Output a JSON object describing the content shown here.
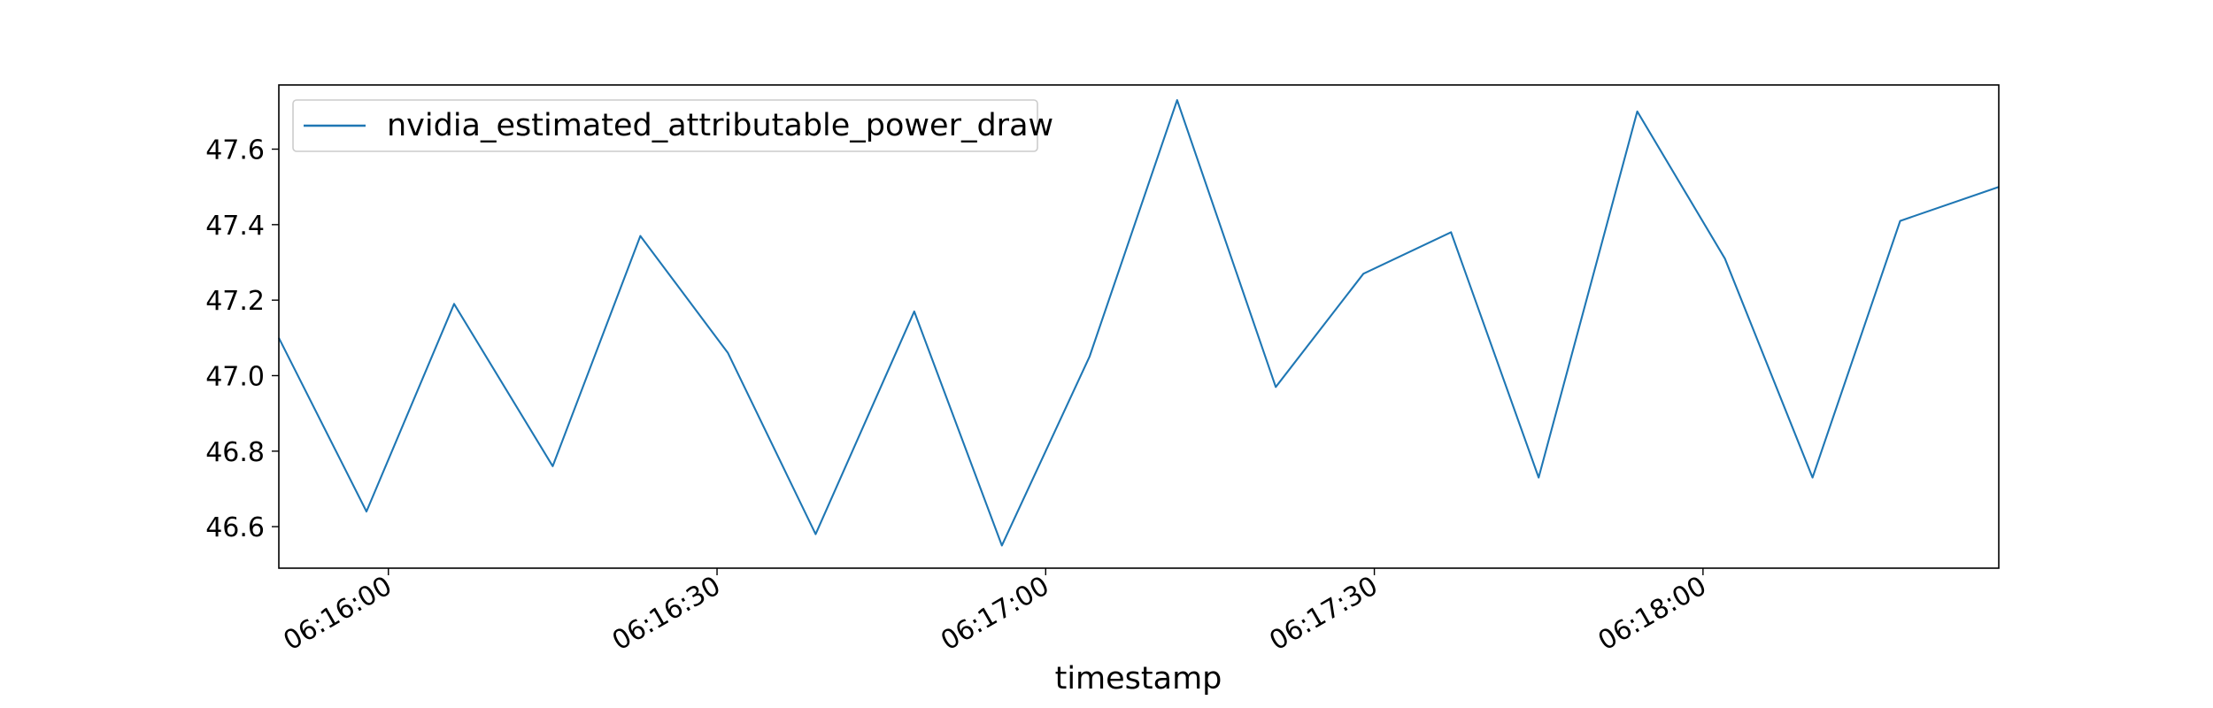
{
  "chart_data": {
    "type": "line",
    "title": "",
    "xlabel": "timestamp",
    "ylabel": "",
    "x_ticks": [
      "06:16:00",
      "06:16:30",
      "06:17:00",
      "06:17:30",
      "06:18:00"
    ],
    "y_ticks": [
      "46.6",
      "46.8",
      "47.0",
      "47.2",
      "47.4",
      "47.6"
    ],
    "ylim": [
      46.49,
      47.77
    ],
    "xlim": [
      "06:15:50",
      "06:18:27"
    ],
    "grid": false,
    "legend_position": "top-left",
    "series": [
      {
        "name": "nvidia_estimated_attributable_power_draw",
        "color": "#1f77b4",
        "x": [
          "06:15:50",
          "06:15:58",
          "06:16:06",
          "06:16:15",
          "06:16:23",
          "06:16:31",
          "06:16:39",
          "06:16:48",
          "06:16:56",
          "06:17:04",
          "06:17:12",
          "06:17:21",
          "06:17:29",
          "06:17:37",
          "06:17:45",
          "06:17:54",
          "06:18:02",
          "06:18:10",
          "06:18:18",
          "06:18:27"
        ],
        "values": [
          47.1,
          46.64,
          47.19,
          46.76,
          47.37,
          47.06,
          46.58,
          47.17,
          46.55,
          47.05,
          47.73,
          46.97,
          47.27,
          47.38,
          46.73,
          47.7,
          47.31,
          46.73,
          47.41,
          47.5
        ]
      }
    ]
  }
}
